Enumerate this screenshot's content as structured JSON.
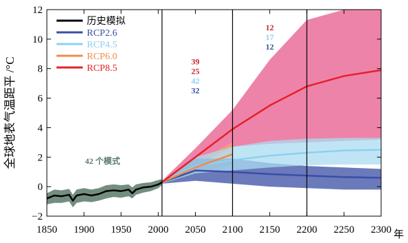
{
  "chart_data": {
    "type": "line",
    "ylabel": "全球地表气温距平 /°C",
    "x_unit_label": "年",
    "xlim": [
      1850,
      2300
    ],
    "ylim": [
      -2,
      12
    ],
    "x_ticks": [
      "1850",
      "1900",
      "1950",
      "2000",
      "2050",
      "2100",
      "2150",
      "2200",
      "2250",
      "2300"
    ],
    "y_ticks": [
      "−2",
      "0",
      "2",
      "4",
      "6",
      "8",
      "10",
      "12"
    ],
    "vertical_lines": [
      2005,
      2100,
      2200
    ],
    "legend_position": "top-left",
    "series": [
      {
        "name": "历史模拟",
        "color": "#000000",
        "band_color": "#5a7a6a",
        "x": [
          1850,
          1860,
          1870,
          1880,
          1885,
          1890,
          1900,
          1910,
          1920,
          1930,
          1940,
          1950,
          1960,
          1965,
          1970,
          1980,
          1990,
          2000,
          2005
        ],
        "values": [
          -0.8,
          -0.6,
          -0.65,
          -0.55,
          -0.95,
          -0.6,
          -0.5,
          -0.6,
          -0.5,
          -0.3,
          -0.25,
          -0.3,
          -0.2,
          -0.45,
          -0.2,
          -0.05,
          0.0,
          0.15,
          0.3
        ],
        "lower": [
          -1.2,
          -1.1,
          -1.1,
          -1.0,
          -1.4,
          -1.1,
          -1.0,
          -1.05,
          -0.95,
          -0.8,
          -0.7,
          -0.75,
          -0.65,
          -0.8,
          -0.55,
          -0.4,
          -0.3,
          -0.1,
          0.1
        ],
        "upper": [
          -0.45,
          -0.2,
          -0.25,
          -0.15,
          -0.55,
          -0.2,
          -0.1,
          -0.2,
          -0.1,
          0.1,
          0.15,
          0.1,
          0.15,
          -0.05,
          0.15,
          0.25,
          0.3,
          0.45,
          0.5
        ]
      },
      {
        "name": "RCP2.6",
        "color": "#3a4ea4",
        "band_color": "#3a4ea4",
        "x": [
          2005,
          2050,
          2100,
          2150,
          2200,
          2250,
          2300
        ],
        "values": [
          0.3,
          1.1,
          1.0,
          0.85,
          0.75,
          0.65,
          0.6
        ],
        "lower": [
          0.2,
          0.4,
          0.2,
          0.0,
          -0.1,
          -0.2,
          -0.2
        ],
        "upper": [
          0.4,
          1.9,
          1.9,
          1.6,
          1.4,
          1.3,
          1.2
        ]
      },
      {
        "name": "RCP4.5",
        "color": "#8ed0ee",
        "band_color": "#a9dcf2",
        "x": [
          2005,
          2050,
          2100,
          2150,
          2200,
          2250,
          2300
        ],
        "values": [
          0.3,
          1.4,
          1.8,
          2.1,
          2.3,
          2.45,
          2.5
        ],
        "lower": [
          0.2,
          0.9,
          1.1,
          1.3,
          1.45,
          1.5,
          1.5
        ],
        "upper": [
          0.4,
          2.0,
          2.7,
          3.1,
          3.25,
          3.3,
          3.3
        ]
      },
      {
        "name": "RCP6.0",
        "color": "#f08a4b",
        "band_color": "#f5a574",
        "x": [
          2005,
          2050,
          2100
        ],
        "values": [
          0.3,
          1.3,
          2.2
        ],
        "lower": [
          0.2,
          0.9,
          1.5
        ],
        "upper": [
          0.4,
          1.7,
          3.0
        ]
      },
      {
        "name": "RCP8.5",
        "color": "#e5202a",
        "band_color": "#e85a8c",
        "x": [
          2005,
          2050,
          2100,
          2150,
          2200,
          2250,
          2300
        ],
        "values": [
          0.3,
          2.0,
          3.9,
          5.5,
          6.8,
          7.5,
          7.9
        ],
        "lower": [
          0.2,
          1.4,
          2.7,
          2.9,
          3.0,
          3.1,
          3.2
        ],
        "upper": [
          0.4,
          2.6,
          5.2,
          8.6,
          11.3,
          12.3,
          12.5
        ]
      }
    ],
    "model_count_label": "42 个模式",
    "model_count_color": "#5a7a6a",
    "model_counts": [
      {
        "period": "2050",
        "counts": [
          {
            "value": "39",
            "color": "#c8262e"
          },
          {
            "value": "25",
            "color": "#c8262e"
          },
          {
            "value": "42",
            "color": "#8ed0ee"
          },
          {
            "value": "32",
            "color": "#3a4ea4"
          }
        ]
      },
      {
        "period": "2150",
        "counts": [
          {
            "value": "12",
            "color": "#c8262e"
          },
          {
            "value": "17",
            "color": "#8ed0ee"
          },
          {
            "value": "12",
            "color": "#3a4ea4"
          }
        ]
      }
    ]
  }
}
